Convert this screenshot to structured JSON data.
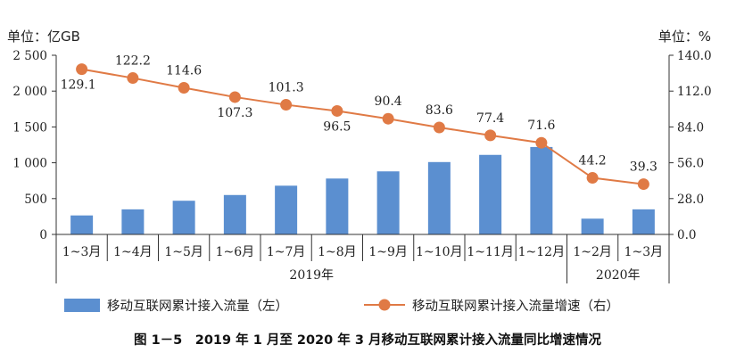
{
  "chart_data": {
    "type": "bar+line",
    "title": "图 1－5　2019 年 1 月至 2020 年 3 月移动互联网累计接入流量同比增速情况",
    "categories": [
      "1~3月",
      "1~4月",
      "1~5月",
      "1~6月",
      "1~7月",
      "1~8月",
      "1~9月",
      "1~10月",
      "1~11月",
      "1~12月",
      "1~2月",
      "1~3月"
    ],
    "year_groups": [
      {
        "label": "2019年",
        "start": 0,
        "end": 9
      },
      {
        "label": "2020年",
        "start": 10,
        "end": 11
      }
    ],
    "left_axis": {
      "unit_label": "单位：亿GB",
      "min": 0,
      "max": 2500,
      "ticks": [
        0,
        500,
        1000,
        1500,
        2000,
        2500
      ],
      "tick_labels": [
        "0",
        "500",
        "1 000",
        "1 500",
        "2 000",
        "2 500"
      ]
    },
    "right_axis": {
      "unit_label": "单位：%",
      "min": 0,
      "max": 140,
      "ticks": [
        0,
        28,
        56,
        84,
        112,
        140
      ],
      "tick_labels": [
        "0.0",
        "28.0",
        "56.0",
        "84.0",
        "112.0",
        "140.0"
      ]
    },
    "series": [
      {
        "name": "移动互联网累计接入流量（左）",
        "type": "bar",
        "axis": "left",
        "color": "#5b8fd0",
        "values": [
          265,
          350,
          470,
          550,
          680,
          780,
          880,
          1010,
          1110,
          1220,
          220,
          350
        ]
      },
      {
        "name": "移动互联网累计接入流量增速（右）",
        "type": "line",
        "axis": "right",
        "color": "#e07a45",
        "values": [
          129.1,
          122.2,
          114.6,
          107.3,
          101.3,
          96.5,
          90.4,
          83.6,
          77.4,
          71.6,
          44.2,
          39.3
        ],
        "labels": [
          "129.1",
          "122.2",
          "114.6",
          "107.3",
          "101.3",
          "96.5",
          "90.4",
          "83.6",
          "77.4",
          "71.6",
          "44.2",
          "39.3"
        ]
      }
    ],
    "legend": [
      {
        "label": "移动互联网累计接入流量（左）",
        "kind": "bar"
      },
      {
        "label": "移动互联网累计接入流量增速（右）",
        "kind": "line"
      }
    ]
  }
}
